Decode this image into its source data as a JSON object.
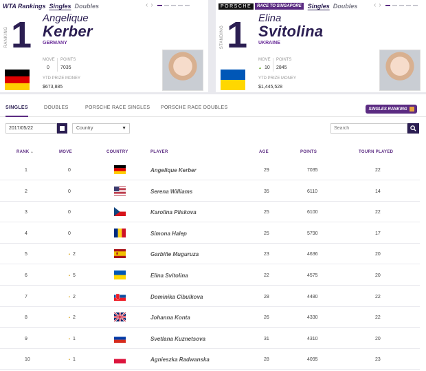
{
  "card_left": {
    "title": "WTA Rankings",
    "tab_singles": "Singles",
    "tab_doubles": "Doubles",
    "prev_arrow": "‹",
    "next_arrow": "›",
    "side_label": "RANKING",
    "rank": "1",
    "first_name": "Angelique",
    "last_name": "Kerber",
    "country": "GERMANY",
    "move_label": "MOVE",
    "move_value": "0",
    "points_label": "POINTS",
    "points_value": "7035",
    "ytd_label": "YTD PRIZE MONEY",
    "ytd_value": "$673,885",
    "flag": "germany-flag"
  },
  "card_right": {
    "brand": "PORSCHE",
    "race_badge": "RACE TO SINGAPORE",
    "tab_singles": "Singles",
    "tab_doubles": "Doubles",
    "prev_arrow": "‹",
    "next_arrow": "›",
    "side_label": "STANDING",
    "rank": "1",
    "first_name": "Elina",
    "last_name": "Svitolina",
    "country": "UKRAINE",
    "move_label": "MOVE",
    "move_value": "10",
    "move_up_icon": "▲",
    "points_label": "POINTS",
    "points_value": "2845",
    "ytd_label": "YTD PRIZE MONEY",
    "ytd_value": "$1,445,528",
    "flag": "ukraine-flag"
  },
  "tabs": [
    "SINGLES",
    "DOUBLES",
    "PORSCHE RACE SINGLES",
    "PORSCHE RACE DOUBLES"
  ],
  "singles_ranking_button": "SINGLES RANKING",
  "filters": {
    "date_value": "2017/05/22",
    "country_value": "Country",
    "search_placeholder": "Search"
  },
  "table": {
    "headers": {
      "rank": "RANK",
      "rank_sort": "▲",
      "move": "MOVE",
      "country": "COUNTRY",
      "player": "PLAYER",
      "age": "AGE",
      "points": "POINTS",
      "tourn": "TOURN PLAYED"
    },
    "rows": [
      {
        "rank": "1",
        "move": "0",
        "up": false,
        "country": "germany",
        "player": "Angelique Kerber",
        "age": "29",
        "points": "7035",
        "tourn": "22"
      },
      {
        "rank": "2",
        "move": "0",
        "up": false,
        "country": "usa",
        "player": "Serena Williams",
        "age": "35",
        "points": "6110",
        "tourn": "14"
      },
      {
        "rank": "3",
        "move": "0",
        "up": false,
        "country": "czech",
        "player": "Karolina Pliskova",
        "age": "25",
        "points": "6100",
        "tourn": "22"
      },
      {
        "rank": "4",
        "move": "0",
        "up": false,
        "country": "romania",
        "player": "Simona Halep",
        "age": "25",
        "points": "5790",
        "tourn": "17"
      },
      {
        "rank": "5",
        "move": "2",
        "up": true,
        "country": "spain",
        "player": "Garbiñe Muguruza",
        "age": "23",
        "points": "4636",
        "tourn": "20"
      },
      {
        "rank": "6",
        "move": "5",
        "up": true,
        "country": "ukraine",
        "player": "Elina Svitolina",
        "age": "22",
        "points": "4575",
        "tourn": "20"
      },
      {
        "rank": "7",
        "move": "2",
        "up": true,
        "country": "slovakia",
        "player": "Dominika Cibulkova",
        "age": "28",
        "points": "4480",
        "tourn": "22"
      },
      {
        "rank": "8",
        "move": "2",
        "up": true,
        "country": "uk",
        "player": "Johanna Konta",
        "age": "26",
        "points": "4330",
        "tourn": "22"
      },
      {
        "rank": "9",
        "move": "1",
        "up": true,
        "country": "russia",
        "player": "Svetlana Kuznetsova",
        "age": "31",
        "points": "4310",
        "tourn": "20"
      },
      {
        "rank": "10",
        "move": "1",
        "up": true,
        "country": "poland",
        "player": "Agnieszka Radwanska",
        "age": "28",
        "points": "4095",
        "tourn": "23"
      }
    ]
  },
  "colors": {
    "brand_purple": "#5b2b82",
    "dark_navy": "#2b1e52",
    "up_arrow": "#e0b84a"
  }
}
